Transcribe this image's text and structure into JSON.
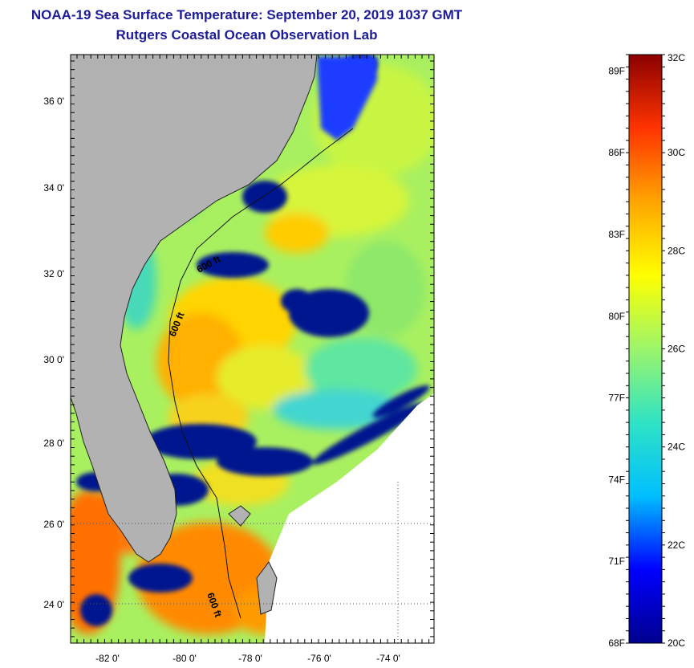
{
  "title_line1": "NOAA-19 Sea Surface Temperature:  September 20, 2019 1037 GMT",
  "title_line2": "Rutgers Coastal Ocean Observation Lab",
  "lat_labels": [
    "36 0'",
    "34 0'",
    "32 0'",
    "30 0'",
    "28 0'",
    "26 0'",
    "24 0'"
  ],
  "lon_labels": [
    "-82 0'",
    "-80 0'",
    "-78 0'",
    "-76 0'",
    "-74 0'"
  ],
  "contour_labels": [
    "600 ft",
    "600 ft",
    "600 ft"
  ],
  "colorbar": {
    "min_c": 20,
    "max_c": 32,
    "celsius_labels": [
      "32C",
      "30C",
      "28C",
      "26C",
      "24C",
      "22C",
      "20C"
    ],
    "celsius_values": [
      32,
      30,
      28,
      26,
      24,
      22,
      20
    ],
    "fahrenheit_labels": [
      "89F",
      "86F",
      "83F",
      "80F",
      "77F",
      "74F",
      "71F",
      "68F"
    ],
    "fahrenheit_values": [
      89,
      86,
      83,
      80,
      77,
      74,
      71,
      68
    ],
    "colors": [
      "#00008f",
      "#0000ff",
      "#00bfff",
      "#2fe3c5",
      "#9cf56a",
      "#ffff00",
      "#ffa500",
      "#ff3300",
      "#8b0000"
    ]
  },
  "colors": {
    "land": "#b2b2b2",
    "title": "#1c1c9a",
    "no_data": "#ffffff"
  }
}
